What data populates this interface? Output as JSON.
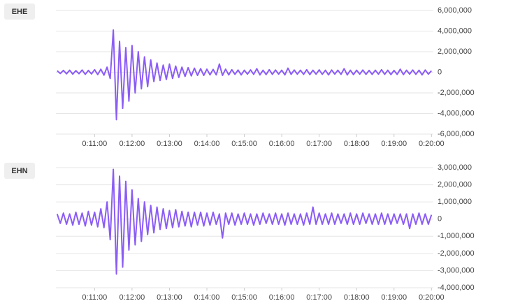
{
  "chart_data": [
    {
      "type": "line",
      "x": [
        600,
        605,
        610,
        615,
        620,
        625,
        630,
        635,
        640,
        645,
        650,
        655,
        660,
        665,
        670,
        675,
        680,
        685,
        690,
        695,
        700,
        705,
        710,
        715,
        720,
        725,
        730,
        735,
        740,
        745,
        750,
        755,
        760,
        765,
        770,
        775,
        780,
        785,
        790,
        795,
        800,
        805,
        810,
        815,
        820,
        825,
        830,
        835,
        840,
        845,
        850,
        855,
        860,
        865,
        870,
        875,
        880,
        885,
        890,
        895,
        900,
        905,
        910,
        915,
        920,
        925,
        930,
        935,
        940,
        945,
        950,
        955,
        960,
        965,
        970,
        975,
        980,
        985,
        990,
        995,
        1000,
        1005,
        1010,
        1015,
        1020,
        1025,
        1030,
        1035,
        1040,
        1045,
        1050,
        1055,
        1060,
        1065,
        1070,
        1075,
        1080,
        1085,
        1090,
        1095,
        1100,
        1105,
        1110,
        1115,
        1120,
        1125,
        1130,
        1135,
        1140,
        1145,
        1150,
        1155,
        1160,
        1165,
        1170,
        1175,
        1180,
        1185,
        1190,
        1195,
        1200
      ],
      "series": [
        {
          "name": "EHE",
          "color": "#8b5cf6",
          "values": [
            150000,
            -120000,
            180000,
            -150000,
            200000,
            -180000,
            160000,
            -140000,
            220000,
            -200000,
            180000,
            -160000,
            250000,
            -220000,
            300000,
            -280000,
            500000,
            -600000,
            4100000,
            -4600000,
            3000000,
            -3500000,
            2400000,
            -2800000,
            2600000,
            -2000000,
            2000000,
            -1600000,
            1500000,
            -1400000,
            1200000,
            -900000,
            900000,
            -800000,
            700000,
            -700000,
            800000,
            -600000,
            600000,
            -500000,
            500000,
            -400000,
            450000,
            -350000,
            400000,
            -300000,
            350000,
            -300000,
            300000,
            -250000,
            280000,
            -250000,
            800000,
            -300000,
            300000,
            -250000,
            250000,
            -200000,
            220000,
            -250000,
            200000,
            -180000,
            230000,
            -200000,
            350000,
            -250000,
            200000,
            -220000,
            250000,
            -200000,
            220000,
            -180000,
            200000,
            -250000,
            400000,
            -200000,
            220000,
            -180000,
            200000,
            -200000,
            250000,
            -220000,
            200000,
            -180000,
            230000,
            -200000,
            200000,
            -250000,
            220000,
            -180000,
            200000,
            -200000,
            350000,
            -250000,
            200000,
            -220000,
            200000,
            -180000,
            220000,
            -200000,
            180000,
            -200000,
            200000,
            -180000,
            250000,
            -200000,
            200000,
            -220000,
            180000,
            -200000,
            300000,
            -220000,
            200000,
            -180000,
            220000,
            -200000,
            200000,
            -250000,
            220000,
            -180000,
            150000
          ]
        }
      ],
      "xlim": [
        598,
        1203
      ],
      "xticks": [
        {
          "value": 660,
          "label": "0:11:00"
        },
        {
          "value": 720,
          "label": "0:12:00"
        },
        {
          "value": 780,
          "label": "0:13:00"
        },
        {
          "value": 840,
          "label": "0:14:00"
        },
        {
          "value": 900,
          "label": "0:15:00"
        },
        {
          "value": 960,
          "label": "0:16:00"
        },
        {
          "value": 1020,
          "label": "0:17:00"
        },
        {
          "value": 1080,
          "label": "0:18:00"
        },
        {
          "value": 1140,
          "label": "0:19:00"
        },
        {
          "value": 1200,
          "label": "0:20:00"
        }
      ],
      "ylim": [
        -6000000,
        6000000
      ],
      "yticks": [
        {
          "value": 6000000,
          "label": "6,000,000"
        },
        {
          "value": 4000000,
          "label": "4,000,000"
        },
        {
          "value": 2000000,
          "label": "2,000,000"
        },
        0,
        {
          "value": -2000000,
          "label": "-2,000,000"
        },
        {
          "value": -4000000,
          "label": "-4,000,000"
        },
        {
          "value": -6000000,
          "label": "-6,000,000"
        }
      ],
      "grid": true
    },
    {
      "type": "line",
      "x": [
        600,
        605,
        610,
        615,
        620,
        625,
        630,
        635,
        640,
        645,
        650,
        655,
        660,
        665,
        670,
        675,
        680,
        685,
        690,
        695,
        700,
        705,
        710,
        715,
        720,
        725,
        730,
        735,
        740,
        745,
        750,
        755,
        760,
        765,
        770,
        775,
        780,
        785,
        790,
        795,
        800,
        805,
        810,
        815,
        820,
        825,
        830,
        835,
        840,
        845,
        850,
        855,
        860,
        865,
        870,
        875,
        880,
        885,
        890,
        895,
        900,
        905,
        910,
        915,
        920,
        925,
        930,
        935,
        940,
        945,
        950,
        955,
        960,
        965,
        970,
        975,
        980,
        985,
        990,
        995,
        1000,
        1005,
        1010,
        1015,
        1020,
        1025,
        1030,
        1035,
        1040,
        1045,
        1050,
        1055,
        1060,
        1065,
        1070,
        1075,
        1080,
        1085,
        1090,
        1095,
        1100,
        1105,
        1110,
        1115,
        1120,
        1125,
        1130,
        1135,
        1140,
        1145,
        1150,
        1155,
        1160,
        1165,
        1170,
        1175,
        1180,
        1185,
        1190,
        1195,
        1200
      ],
      "series": [
        {
          "name": "EHN",
          "color": "#8b5cf6",
          "values": [
            300000,
            -250000,
            350000,
            -300000,
            300000,
            -350000,
            400000,
            -300000,
            350000,
            -400000,
            450000,
            -350000,
            400000,
            -450000,
            600000,
            -500000,
            1000000,
            -1200000,
            2900000,
            -3200000,
            2500000,
            -2800000,
            2200000,
            -1800000,
            1700000,
            -1500000,
            1200000,
            -1300000,
            1000000,
            -900000,
            800000,
            -800000,
            700000,
            -600000,
            600000,
            -550000,
            500000,
            -500000,
            550000,
            -450000,
            450000,
            -400000,
            400000,
            -450000,
            400000,
            -350000,
            400000,
            -400000,
            350000,
            -350000,
            400000,
            -300000,
            300000,
            -1100000,
            350000,
            -300000,
            350000,
            -350000,
            300000,
            -300000,
            350000,
            -300000,
            300000,
            -350000,
            300000,
            -300000,
            350000,
            -250000,
            300000,
            -300000,
            350000,
            -300000,
            300000,
            -350000,
            350000,
            -300000,
            300000,
            -300000,
            300000,
            -350000,
            350000,
            -300000,
            700000,
            -300000,
            350000,
            -300000,
            300000,
            -300000,
            350000,
            -300000,
            300000,
            -250000,
            300000,
            -300000,
            350000,
            -300000,
            300000,
            -300000,
            350000,
            -250000,
            300000,
            -300000,
            300000,
            -300000,
            350000,
            -300000,
            300000,
            -300000,
            300000,
            -250000,
            300000,
            -300000,
            300000,
            -550000,
            300000,
            -300000,
            350000,
            -300000,
            300000,
            -300000,
            250000
          ]
        }
      ],
      "xlim": [
        598,
        1203
      ],
      "xticks": [
        {
          "value": 660,
          "label": "0:11:00"
        },
        {
          "value": 720,
          "label": "0:12:00"
        },
        {
          "value": 780,
          "label": "0:13:00"
        },
        {
          "value": 840,
          "label": "0:14:00"
        },
        {
          "value": 900,
          "label": "0:15:00"
        },
        {
          "value": 960,
          "label": "0:16:00"
        },
        {
          "value": 1020,
          "label": "0:17:00"
        },
        {
          "value": 1080,
          "label": "0:18:00"
        },
        {
          "value": 1140,
          "label": "0:19:00"
        },
        {
          "value": 1200,
          "label": "0:20:00"
        }
      ],
      "ylim": [
        -4000000,
        3000000
      ],
      "yticks": [
        {
          "value": 3000000,
          "label": "3,000,000"
        },
        {
          "value": 2000000,
          "label": "2,000,000"
        },
        {
          "value": 1000000,
          "label": "1,000,000"
        },
        0,
        {
          "value": -1000000,
          "label": "-1,000,000"
        },
        {
          "value": -2000000,
          "label": "-2,000,000"
        },
        {
          "value": -3000000,
          "label": "-3,000,000"
        },
        {
          "value": -4000000,
          "label": "-4,000,000"
        }
      ],
      "grid": true
    }
  ]
}
